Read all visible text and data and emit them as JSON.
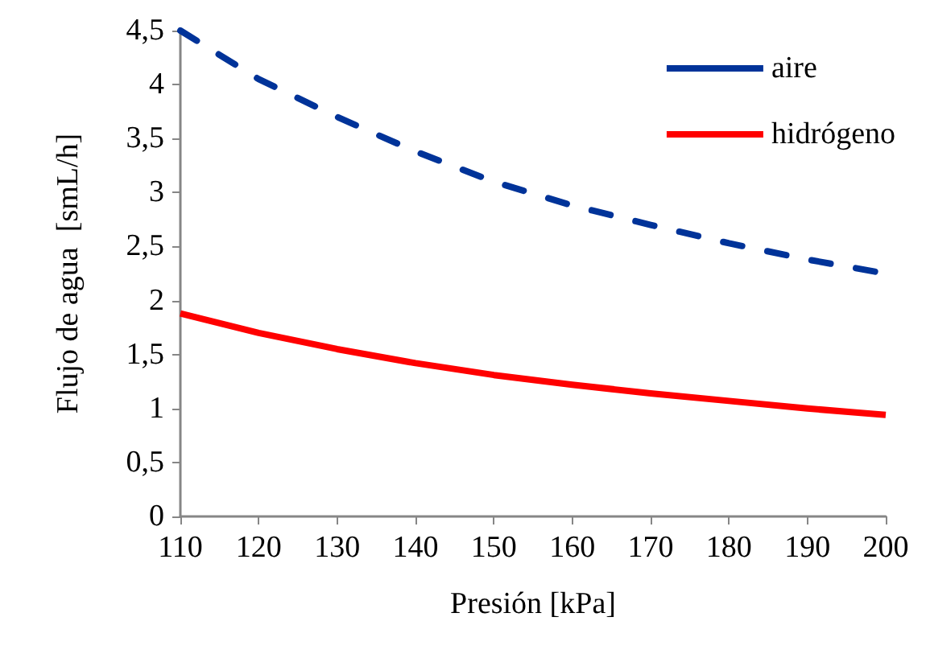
{
  "chart_data": {
    "type": "line",
    "xlabel": "Presión [kPa]",
    "ylabel": "Flujo de agua  [smL/h]",
    "x": [
      110,
      120,
      130,
      140,
      150,
      160,
      170,
      180,
      190,
      200
    ],
    "series": [
      {
        "name": "aire",
        "color": "#003399",
        "line_style": "dashed",
        "values": [
          4.5,
          4.05,
          3.7,
          3.38,
          3.1,
          2.88,
          2.7,
          2.53,
          2.38,
          2.25
        ]
      },
      {
        "name": "hidrógeno",
        "color": "#ff0000",
        "line_style": "solid",
        "values": [
          1.88,
          1.7,
          1.55,
          1.42,
          1.31,
          1.22,
          1.14,
          1.07,
          1.0,
          0.94
        ]
      }
    ],
    "xlim": [
      110,
      200
    ],
    "xticks": [
      110,
      120,
      130,
      140,
      150,
      160,
      170,
      180,
      190,
      200
    ],
    "ylim": [
      0,
      4.5
    ],
    "yticks": [
      0,
      {
        "value": 0.5,
        "label": "0,5"
      },
      1,
      {
        "value": 1.5,
        "label": "1,5"
      },
      2,
      {
        "value": 2.5,
        "label": "2,5"
      },
      3,
      {
        "value": 3.5,
        "label": "3,5"
      },
      4,
      {
        "value": 4.5,
        "label": "4,5"
      }
    ],
    "grid": false,
    "legend": "top right",
    "marker": "none"
  }
}
